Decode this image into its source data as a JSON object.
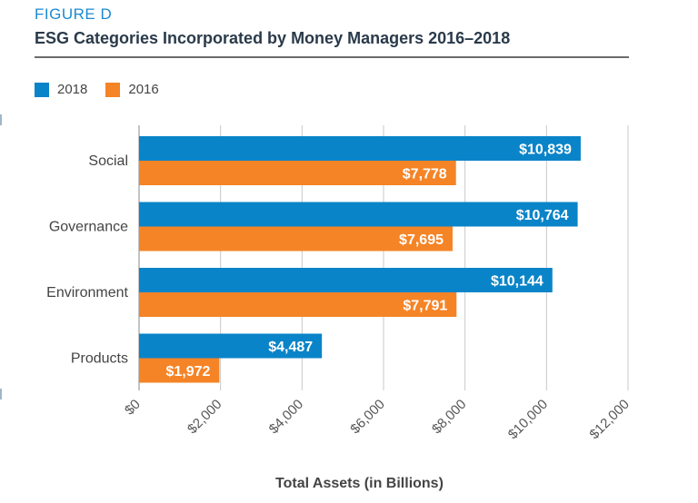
{
  "header": {
    "figure_label": "FIGURE D",
    "title": "ESG Categories Incorporated by Money Managers 2016–2018"
  },
  "legend": [
    {
      "label": "2018",
      "color": "#0a84c8"
    },
    {
      "label": "2016",
      "color": "#f58426"
    }
  ],
  "chart_data": {
    "type": "bar",
    "orientation": "horizontal",
    "title": "ESG Categories Incorporated by Money Managers 2016–2018",
    "categories": [
      "Social",
      "Governance",
      "Environment",
      "Products"
    ],
    "series": [
      {
        "name": "2018",
        "color": "#0a84c8",
        "values": [
          10839,
          10764,
          10144,
          4487
        ],
        "labels": [
          "$10,839",
          "$10,764",
          "$10,144",
          "$4,487"
        ]
      },
      {
        "name": "2016",
        "color": "#f58426",
        "values": [
          7778,
          7695,
          7791,
          1972
        ],
        "labels": [
          "$7,778",
          "$7,695",
          "$7,791",
          "$1,972"
        ]
      }
    ],
    "xlim": [
      0,
      12000
    ],
    "xticks": [
      0,
      2000,
      4000,
      6000,
      8000,
      10000,
      12000
    ],
    "xtick_labels": [
      "$0",
      "$2,000",
      "$4,000",
      "$6,000",
      "$8,000",
      "$10,000",
      "$12,000"
    ],
    "xlabel": "Total Assets (in Billions)",
    "ylabel": "",
    "grid": true,
    "legend_position": "top-left"
  }
}
